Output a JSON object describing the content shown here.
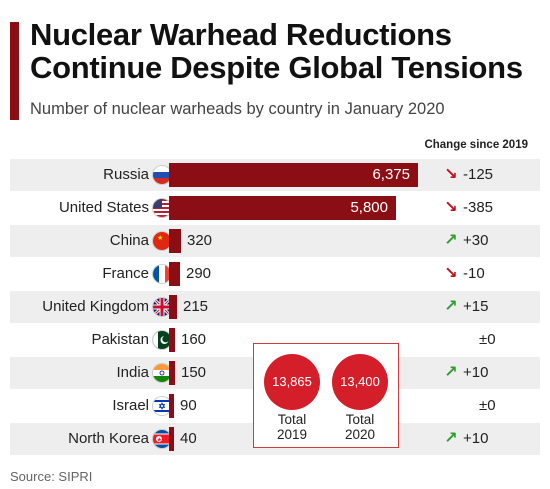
{
  "header": {
    "title_line1": "Nuclear Warhead Reductions",
    "title_line2": "Continue Despite Global Tensions",
    "subtitle": "Number of nuclear warheads by country in January 2020",
    "change_header": "Change since 2019"
  },
  "colors": {
    "accent": "#8b0e15",
    "bar": "#8b0e15",
    "circle": "#d41f2b",
    "down_arrow": "#c0121c",
    "up_arrow": "#2f9e2f"
  },
  "chart_data": {
    "type": "bar",
    "orientation": "horizontal",
    "title": "Nuclear Warhead Reductions Continue Despite Global Tensions",
    "subtitle": "Number of nuclear warheads by country in January 2020",
    "categories": [
      "Russia",
      "United States",
      "China",
      "France",
      "United Kingdom",
      "Pakistan",
      "India",
      "Israel",
      "North Korea"
    ],
    "values": [
      6375,
      5800,
      320,
      290,
      215,
      160,
      150,
      90,
      40
    ],
    "value_labels": [
      "6,375",
      "5,800",
      "320",
      "290",
      "215",
      "160",
      "150",
      "90",
      "40"
    ],
    "change_since_2019": [
      "-125",
      "-385",
      "+30",
      "-10",
      "+15",
      "±0",
      "+10",
      "±0",
      "+10"
    ],
    "change_direction": [
      "down",
      "down",
      "up",
      "down",
      "up",
      "none",
      "up",
      "none",
      "up"
    ],
    "flag_icons": [
      "russia-flag-icon",
      "usa-flag-icon",
      "china-flag-icon",
      "france-flag-icon",
      "uk-flag-icon",
      "pakistan-flag-icon",
      "india-flag-icon",
      "israel-flag-icon",
      "north-korea-flag-icon"
    ],
    "xlim": [
      0,
      6375
    ],
    "grid": false,
    "totals": [
      {
        "value": "13,865",
        "label_line1": "Total",
        "label_line2": "2019"
      },
      {
        "value": "13,400",
        "label_line1": "Total",
        "label_line2": "2020"
      }
    ]
  },
  "footer": {
    "source": "Source: SIPRI"
  }
}
